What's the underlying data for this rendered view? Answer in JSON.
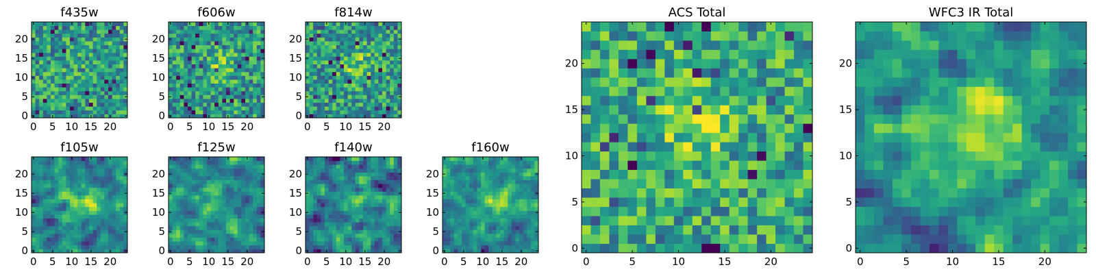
{
  "chart_data": {
    "type": "heatmap",
    "colormap": "viridis",
    "color_range": [
      0,
      1
    ],
    "panels": [
      {
        "id": "f435w",
        "title": "f435w",
        "size": 25,
        "xticks": [
          "0",
          "5",
          "10",
          "15",
          "20"
        ],
        "yticks": [
          "0",
          "5",
          "10",
          "15",
          "20"
        ],
        "seed": 11,
        "smooth": 0,
        "peak": [
          12,
          12
        ],
        "peak_strength": 0.05,
        "base": 0.55
      },
      {
        "id": "f606w",
        "title": "f606w",
        "size": 25,
        "xticks": [
          "0",
          "5",
          "10",
          "15",
          "20"
        ],
        "yticks": [
          "0",
          "5",
          "10",
          "15",
          "20"
        ],
        "seed": 23,
        "smooth": 0,
        "peak": [
          13,
          13
        ],
        "peak_strength": 0.18,
        "base": 0.55
      },
      {
        "id": "f814w",
        "title": "f814w",
        "size": 25,
        "xticks": [
          "0",
          "5",
          "10",
          "15",
          "20"
        ],
        "yticks": [
          "0",
          "5",
          "10",
          "15",
          "20"
        ],
        "seed": 37,
        "smooth": 0,
        "peak": [
          13,
          13
        ],
        "peak_strength": 0.22,
        "base": 0.55
      },
      {
        "id": "f105w",
        "title": "f105w",
        "size": 25,
        "xticks": [
          "0",
          "5",
          "10",
          "15",
          "20"
        ],
        "yticks": [
          "0",
          "5",
          "10",
          "15",
          "20"
        ],
        "seed": 41,
        "smooth": 1,
        "peak": [
          13,
          13
        ],
        "peak_strength": 0.3,
        "base": 0.5
      },
      {
        "id": "f125w",
        "title": "f125w",
        "size": 25,
        "xticks": [
          "0",
          "5",
          "10",
          "15",
          "20"
        ],
        "yticks": [
          "0",
          "5",
          "10",
          "15",
          "20"
        ],
        "seed": 53,
        "smooth": 1,
        "peak": [
          12,
          12
        ],
        "peak_strength": 0.15,
        "base": 0.52
      },
      {
        "id": "f140w",
        "title": "f140w",
        "size": 25,
        "xticks": [
          "0",
          "5",
          "10",
          "15",
          "20"
        ],
        "yticks": [
          "0",
          "5",
          "10",
          "15",
          "20"
        ],
        "seed": 67,
        "smooth": 1,
        "peak": [
          12,
          13
        ],
        "peak_strength": 0.2,
        "base": 0.52
      },
      {
        "id": "f160w",
        "title": "f160w",
        "size": 25,
        "xticks": [
          "0",
          "5",
          "10",
          "15",
          "20"
        ],
        "yticks": [
          "0",
          "5",
          "10",
          "15",
          "20"
        ],
        "seed": 79,
        "smooth": 1,
        "peak": [
          13,
          13
        ],
        "peak_strength": 0.3,
        "base": 0.52
      },
      {
        "id": "acs_total",
        "title": "ACS Total",
        "size": 25,
        "xticks": [
          "0",
          "5",
          "10",
          "15",
          "20"
        ],
        "yticks": [
          "0",
          "5",
          "10",
          "15",
          "20"
        ],
        "seed": 97,
        "smooth": 0,
        "peak": [
          12,
          13
        ],
        "peak_strength": 0.22,
        "base": 0.6
      },
      {
        "id": "wfc3_ir_total",
        "title": "WFC3 IR Total",
        "size": 25,
        "xticks": [
          "0",
          "5",
          "10",
          "15",
          "20"
        ],
        "yticks": [
          "0",
          "5",
          "10",
          "15",
          "20"
        ],
        "seed": 113,
        "smooth": 1,
        "peak": [
          13,
          12
        ],
        "peak_strength": 0.4,
        "base": 0.55
      }
    ]
  }
}
